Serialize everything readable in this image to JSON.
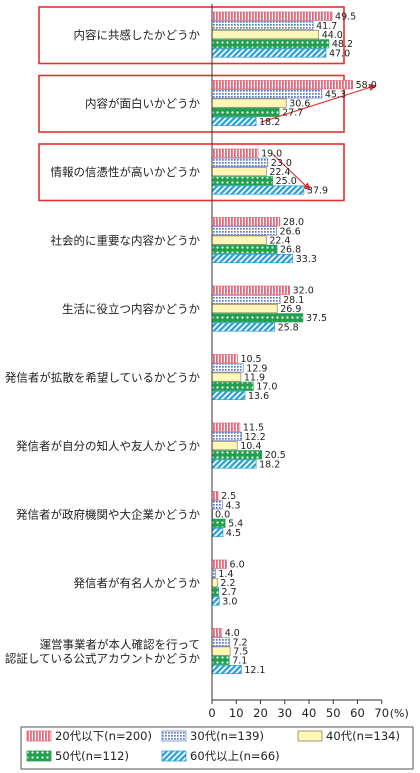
{
  "chart_data": {
    "type": "bar",
    "orientation": "horizontal",
    "unit": "(%)",
    "xlim": [
      0,
      70
    ],
    "x_ticks": [
      "0",
      "10",
      "20",
      "30",
      "40",
      "50",
      "60",
      "70"
    ],
    "categories": [
      "内容に共感したかどうか",
      "内容が面白いかどうか",
      "情報の信憑性が高いかどうか",
      "社会的に重要な内容かどうか",
      "生活に役立つ内容かどうか",
      "発信者が拡散を希望しているかどうか",
      "発信者が自分の知人や友人かどうか",
      "発信者が政府機関や大企業かどうか",
      "発信者が有名人かどうか",
      "運営事業者が本人確認を行って|認証している公式アカウントかどうか"
    ],
    "highlighted_categories": [
      0,
      1,
      2
    ],
    "series": [
      {
        "name": "20代以下(n=200)",
        "color": "#e8677a",
        "pattern": "vertical-stripes",
        "values": [
          49.5,
          58.0,
          19.0,
          28.0,
          32.0,
          10.5,
          11.5,
          2.5,
          6.0,
          4.0
        ],
        "labels": [
          "49.5",
          "58.0",
          "19.0",
          "28.0",
          "32.0",
          "10.5",
          "11.5",
          "2.5",
          "6.0",
          "4.0"
        ]
      },
      {
        "name": "30代(n=139)",
        "color": "#6f87c9",
        "pattern": "dots-grid",
        "values": [
          41.7,
          45.3,
          23.0,
          26.6,
          28.1,
          12.9,
          12.2,
          4.3,
          1.4,
          7.2
        ],
        "labels": [
          "41.7",
          "45.3",
          "23.0",
          "26.6",
          "28.1",
          "12.9",
          "12.2",
          "4.3",
          "1.4",
          "7.2"
        ]
      },
      {
        "name": "40代(n=134)",
        "color": "#fff6b8",
        "pattern": "solid",
        "values": [
          44.0,
          30.6,
          22.4,
          22.4,
          26.9,
          11.9,
          10.4,
          0.0,
          2.2,
          7.5
        ],
        "labels": [
          "44.0",
          "30.6",
          "22.4",
          "22.4",
          "26.9",
          "11.9",
          "10.4",
          "0.0",
          "2.2",
          "7.5"
        ]
      },
      {
        "name": "50代(n=112)",
        "color": "#22a04f",
        "pattern": "white-dots",
        "values": [
          48.2,
          27.7,
          25.0,
          26.8,
          37.5,
          17.0,
          20.5,
          5.4,
          2.7,
          7.1
        ],
        "labels": [
          "48.2",
          "27.7",
          "25.0",
          "26.8",
          "37.5",
          "17.0",
          "20.5",
          "5.4",
          "2.7",
          "7.1"
        ]
      },
      {
        "name": "60代以上(n=66)",
        "color": "#2aa0d6",
        "pattern": "diagonal-stripes",
        "values": [
          47.0,
          18.2,
          37.9,
          33.3,
          25.8,
          13.6,
          18.2,
          4.5,
          3.0,
          12.1
        ],
        "labels": [
          "47.0",
          "18.2",
          "37.9",
          "33.3",
          "25.8",
          "13.6",
          "18.2",
          "4.5",
          "3.0",
          "12.1"
        ]
      }
    ],
    "legend_placement": "bottom",
    "grid": false
  }
}
